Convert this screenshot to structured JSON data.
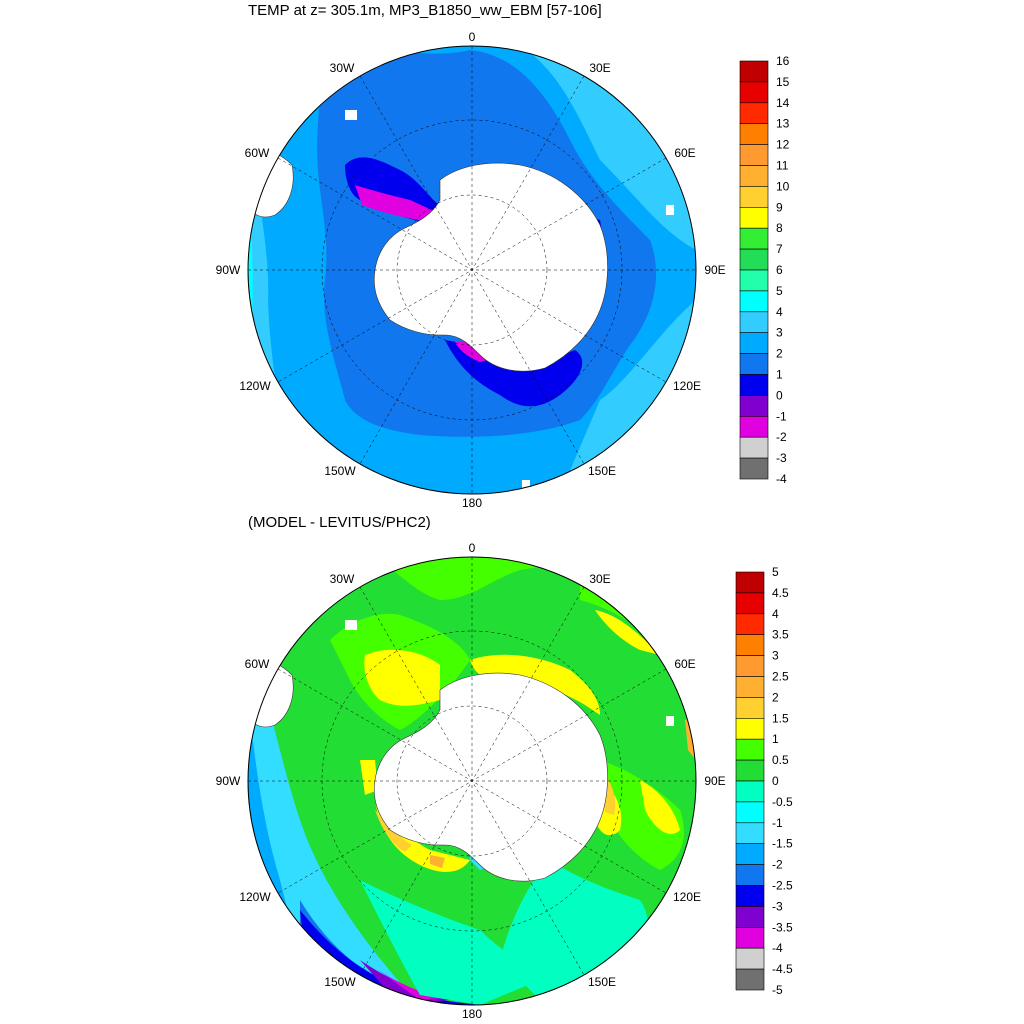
{
  "top": {
    "title": "TEMP at z= 305.1m, MP3_B1850_ww_EBM [57-106]",
    "colorbar_labels": [
      "16",
      "15",
      "14",
      "13",
      "12",
      "11",
      "10",
      "9",
      "8",
      "7",
      "6",
      "5",
      "4",
      "3",
      "2",
      "1",
      "0",
      "-1",
      "-2",
      "-3",
      "-4"
    ],
    "colorbar_colors": [
      "#c00000",
      "#e60000",
      "#ff2a00",
      "#ff7f00",
      "#ff9a30",
      "#ffb030",
      "#ffd030",
      "#ffff00",
      "#33ee33",
      "#22dd55",
      "#22ffaa",
      "#00ffff",
      "#33ccff",
      "#00aaff",
      "#1177ee",
      "#0000ee",
      "#8000d0",
      "#e000e0",
      "#d0d0d0",
      "#707070"
    ]
  },
  "bottom": {
    "title": "(MODEL - LEVITUS/PHC2)",
    "colorbar_labels": [
      "5",
      "4.5",
      "4",
      "3.5",
      "3",
      "2.5",
      "2",
      "1.5",
      "1",
      "0.5",
      "0",
      "-0.5",
      "-1",
      "-1.5",
      "-2",
      "-2.5",
      "-3",
      "-3.5",
      "-4",
      "-4.5",
      "-5"
    ],
    "colorbar_colors": [
      "#c00000",
      "#e60000",
      "#ff2a00",
      "#ff7f00",
      "#ff9a30",
      "#ffb030",
      "#ffd030",
      "#ffff00",
      "#44ff00",
      "#22dd33",
      "#00ffc0",
      "#00ffff",
      "#33ddff",
      "#00aaff",
      "#1177ee",
      "#0000ee",
      "#8000d0",
      "#e000e0",
      "#d0d0d0",
      "#707070"
    ]
  },
  "longitude_labels": [
    "0",
    "30E",
    "60E",
    "90E",
    "120E",
    "150E",
    "180",
    "150W",
    "120W",
    "90W",
    "60W",
    "30W"
  ]
}
